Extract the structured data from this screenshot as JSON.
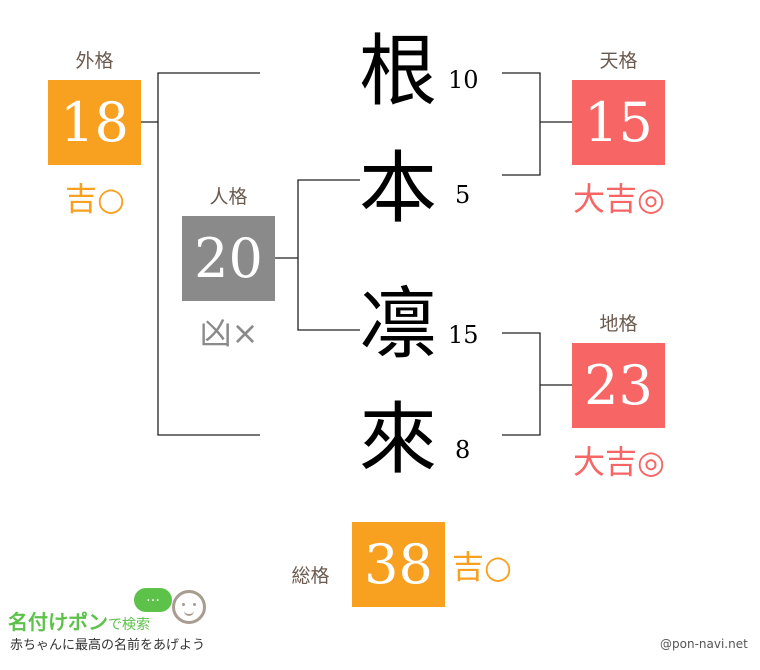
{
  "colors": {
    "kichi": "#f8a020",
    "daikichi": "#f76565",
    "kyo": "#8a8a8a",
    "label": "#6b5a4e",
    "brand": "#5cc24a"
  },
  "gaikaku": {
    "label": "外格",
    "value": "18",
    "fortune": "吉○"
  },
  "jinkaku": {
    "label": "人格",
    "value": "20",
    "fortune": "凶×"
  },
  "tenkaku": {
    "label": "天格",
    "value": "15",
    "fortune": "大吉◎"
  },
  "chikaku": {
    "label": "地格",
    "value": "23",
    "fortune": "大吉◎"
  },
  "soukaku": {
    "label": "総格",
    "value": "38",
    "fortune": "吉○"
  },
  "characters": [
    {
      "char": "根",
      "strokes": "10"
    },
    {
      "char": "本",
      "strokes": "5"
    },
    {
      "char": "凛",
      "strokes": "15"
    },
    {
      "char": "來",
      "strokes": "8"
    }
  ],
  "footer": {
    "brand": "名付けポン",
    "brand_suffix": "で検索",
    "tagline": "赤ちゃんに最高の名前をあげよう",
    "bubble": "…",
    "credit": "@pon-navi.net"
  }
}
